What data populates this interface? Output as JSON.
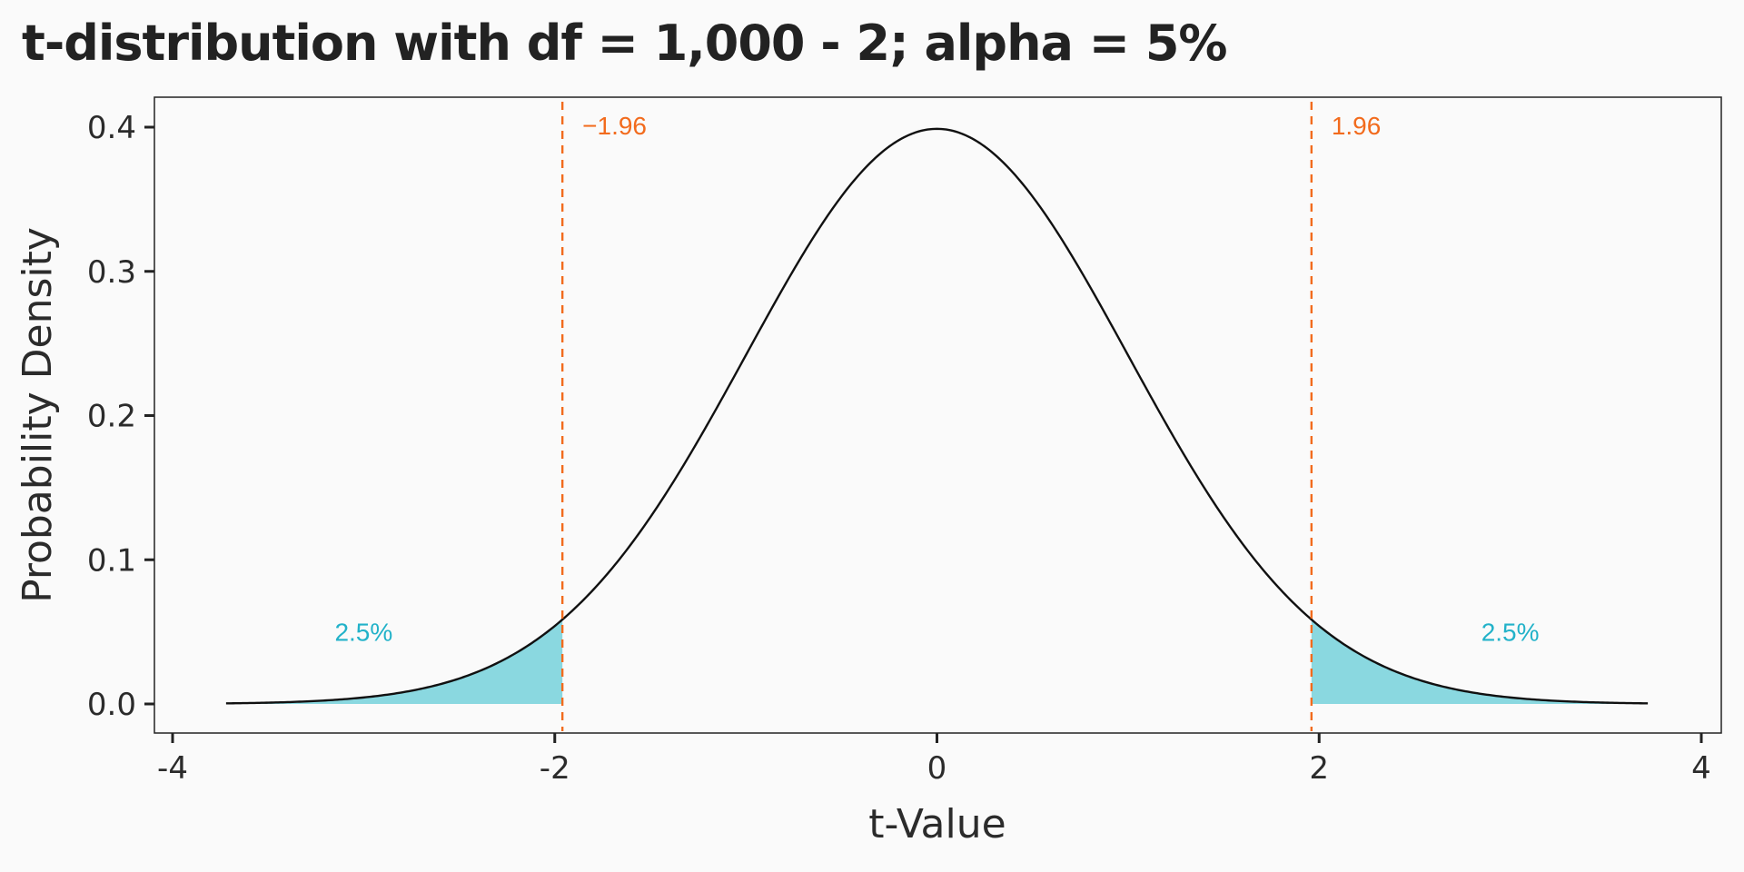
{
  "chart_data": {
    "type": "area",
    "title": "t-distribution with df = 1,000 - 2; alpha = 5%",
    "xlabel": "t-Value",
    "ylabel": "Probability Density",
    "df": 998,
    "alpha": 0.05,
    "xlim": [
      -4,
      4
    ],
    "ylim": [
      0,
      0.4
    ],
    "x_ticks": [
      -4,
      -2,
      0,
      2,
      4
    ],
    "x_tick_labels": [
      "-4",
      "-2",
      "0",
      "2",
      "4"
    ],
    "y_ticks": [
      0.0,
      0.1,
      0.2,
      0.3,
      0.4
    ],
    "y_tick_labels": [
      "0.0",
      "0.1",
      "0.2",
      "0.3",
      "0.4"
    ],
    "curve_range": [
      -3.72,
      3.72
    ],
    "critical_values": [
      {
        "value": -1.96,
        "label": "−1.96"
      },
      {
        "value": 1.96,
        "label": "1.96"
      }
    ],
    "tails": [
      {
        "from": -3.72,
        "to": -1.96,
        "label": "2.5%",
        "label_x": -3.0,
        "label_y": 0.05
      },
      {
        "from": 1.96,
        "to": 3.72,
        "label": "2.5%",
        "label_x": 3.0,
        "label_y": 0.05
      }
    ],
    "grid": false,
    "colors": {
      "background": "#fafafa",
      "curve": "#111111",
      "tail_fill": "#8ad8e0",
      "critical_line": "#f26b1d",
      "tail_label": "#22b2c9",
      "axis": "#222222"
    }
  }
}
